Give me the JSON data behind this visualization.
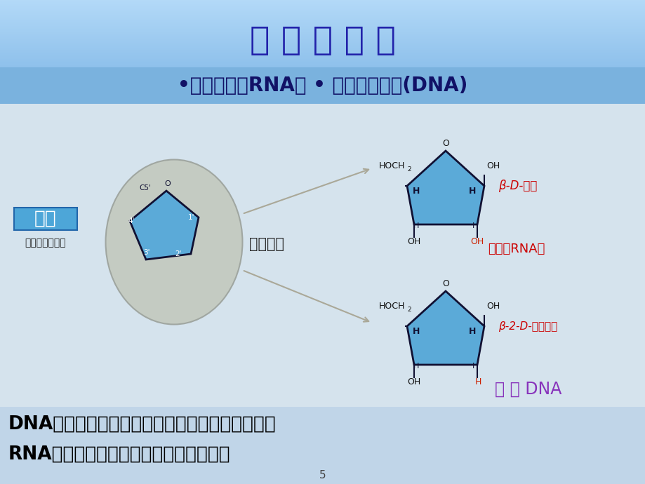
{
  "title": "核 酸 的 种 类",
  "subtitle": "•核糖核酸（RNA） • 脱氧核糖核酸(DNA)",
  "label_wutang": "戊糖",
  "label_wutang_sub": "（一种五碘糖）",
  "label_fenweilei": "分为两类",
  "label_beta_ribose": "β-D-核糖",
  "label_rna": "（构成RNA）",
  "label_beta_deoxyribose": "β-2-D-脱氧核糖",
  "label_dna": "构 成 DNA",
  "footer1": "DNA所含的戊糖为脱氧核糖，故称为脱氧核糖核酸",
  "footer2": "RNA所含的戊糖为核糖，故称为核糖核酸",
  "pentagon_color": "#5baad8",
  "pentagon_edge_color": "#111133",
  "wutang_box_color": "#4da6d8",
  "beta_ribose_color": "#cc0000",
  "rna_color": "#cc0000",
  "beta_deoxy_color": "#cc0000",
  "dna_color": "#8833bb",
  "title_color": "#2222aa",
  "arrow_color": "#aaa898"
}
